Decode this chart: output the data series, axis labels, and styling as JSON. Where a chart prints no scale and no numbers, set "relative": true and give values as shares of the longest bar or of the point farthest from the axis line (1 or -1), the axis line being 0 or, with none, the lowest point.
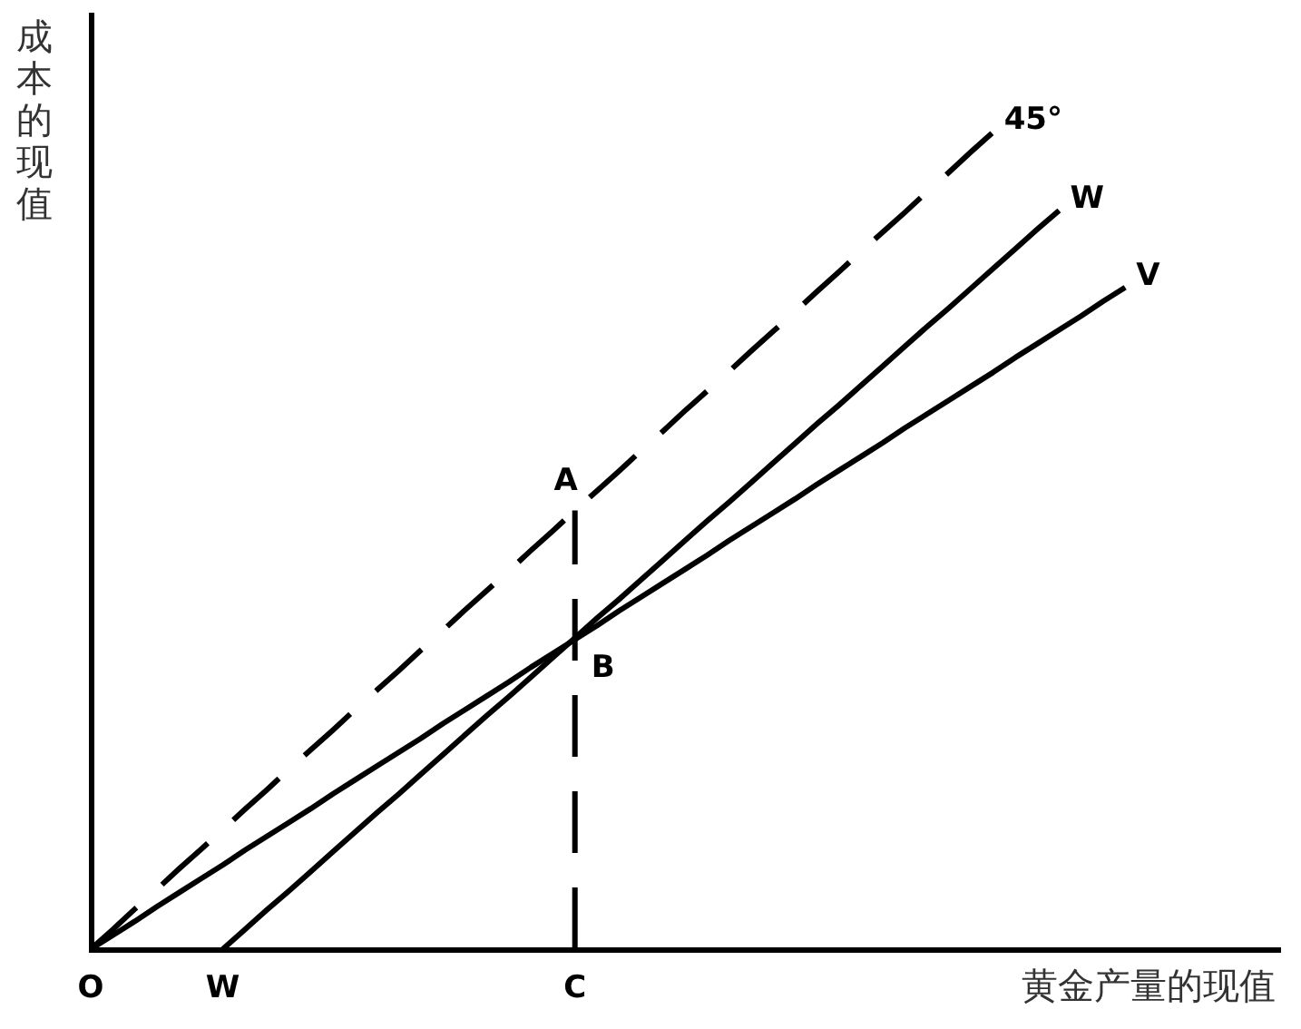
{
  "chart_data": {
    "type": "line",
    "xlabel": "黄金产量的现值",
    "ylabel": "成本的现值",
    "relative": true,
    "tick_labels": "x",
    "grid": false,
    "legend": false,
    "marker": "none",
    "categories": [
      "O",
      null,
      null,
      null,
      null,
      null,
      "W",
      null,
      null,
      null,
      null,
      null,
      null,
      null,
      null,
      null,
      null,
      null,
      null,
      null,
      null,
      null,
      "C",
      null,
      null,
      null,
      null,
      null,
      null,
      null,
      null,
      null,
      null,
      null,
      null,
      null,
      null,
      null,
      null,
      null,
      null,
      null,
      null,
      null,
      null,
      null,
      null,
      null,
      null,
      null,
      null,
      null,
      null,
      null,
      null
    ],
    "series": [
      {
        "name": "45°",
        "color": "#000000",
        "line_style": "dashed",
        "values": [
          0,
          0.024,
          0.049,
          0.073,
          0.098,
          0.122,
          0.146,
          0.171,
          0.195,
          0.22,
          0.244,
          0.268,
          0.293,
          0.317,
          0.341,
          0.366,
          0.39,
          0.415,
          0.439,
          0.463,
          0.488,
          0.512,
          0.537,
          0.561,
          0.585,
          0.61,
          0.634,
          0.659,
          0.683,
          0.707,
          0.732,
          0.756,
          0.78,
          0.805,
          0.829,
          0.854,
          0.878,
          0.902,
          0.927,
          0.951,
          0.976,
          1,
          null,
          null,
          null,
          null,
          null,
          null,
          null,
          null,
          null,
          null,
          null,
          null,
          null
        ]
      },
      {
        "name": "W",
        "color": "#000000",
        "line_style": "solid",
        "values": [
          null,
          null,
          null,
          null,
          null,
          null,
          0,
          0.024,
          0.048,
          0.071,
          0.095,
          0.119,
          0.143,
          0.167,
          0.19,
          0.214,
          0.238,
          0.262,
          0.286,
          0.309,
          0.333,
          0.357,
          0.381,
          0.405,
          0.428,
          0.452,
          0.476,
          0.5,
          0.524,
          0.547,
          0.571,
          0.595,
          0.619,
          0.643,
          0.666,
          0.69,
          0.714,
          0.738,
          0.762,
          0.785,
          0.809,
          0.833,
          0.857,
          0.881,
          0.904,
          null,
          null,
          null,
          null,
          null,
          null,
          null,
          null,
          null,
          null
        ]
      },
      {
        "name": "V",
        "color": "#000000",
        "line_style": "solid",
        "values": [
          0,
          0.017,
          0.034,
          0.052,
          0.069,
          0.086,
          0.103,
          0.121,
          0.138,
          0.155,
          0.172,
          0.19,
          0.207,
          0.224,
          0.241,
          0.258,
          0.276,
          0.293,
          0.31,
          0.327,
          0.345,
          0.362,
          0.379,
          0.396,
          0.414,
          0.431,
          0.448,
          0.465,
          0.482,
          0.5,
          0.517,
          0.534,
          0.551,
          0.569,
          0.586,
          0.603,
          0.62,
          0.638,
          0.655,
          0.672,
          0.689,
          0.706,
          0.724,
          0.741,
          0.758,
          0.775,
          0.793,
          0.81,
          null,
          null,
          null,
          null,
          null,
          null,
          null
        ]
      },
      {
        "color": "#000000",
        "line_style": "dashed",
        "x": [
          "C",
          "C"
        ],
        "values": [
          0,
          0.537
        ]
      }
    ],
    "annotations": [
      {
        "text": "A",
        "x": "C",
        "y": 0.537
      },
      {
        "text": "B",
        "x": "C",
        "y": 0.38
      }
    ]
  }
}
